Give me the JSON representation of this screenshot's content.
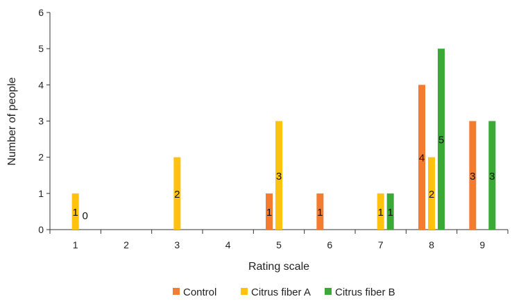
{
  "chart_data": {
    "type": "bar",
    "title": "",
    "xlabel": "Rating scale",
    "ylabel": "Number of people",
    "categories": [
      "1",
      "2",
      "3",
      "4",
      "5",
      "6",
      "7",
      "8",
      "9"
    ],
    "ylim": [
      0,
      6
    ],
    "yticks": [
      0,
      1,
      2,
      3,
      4,
      5,
      6
    ],
    "grid": false,
    "legend_position": "bottom",
    "series": [
      {
        "name": "Control",
        "color": "#F47C30",
        "values": [
          null,
          null,
          null,
          null,
          1,
          1,
          null,
          4,
          3
        ]
      },
      {
        "name": "Citrus fiber A",
        "color": "#FFC20E",
        "values": [
          1,
          null,
          2,
          null,
          3,
          null,
          1,
          2,
          null
        ]
      },
      {
        "name": "Citrus fiber B",
        "color": "#3AA935",
        "values": [
          0,
          null,
          null,
          null,
          null,
          null,
          1,
          5,
          3
        ]
      }
    ]
  }
}
